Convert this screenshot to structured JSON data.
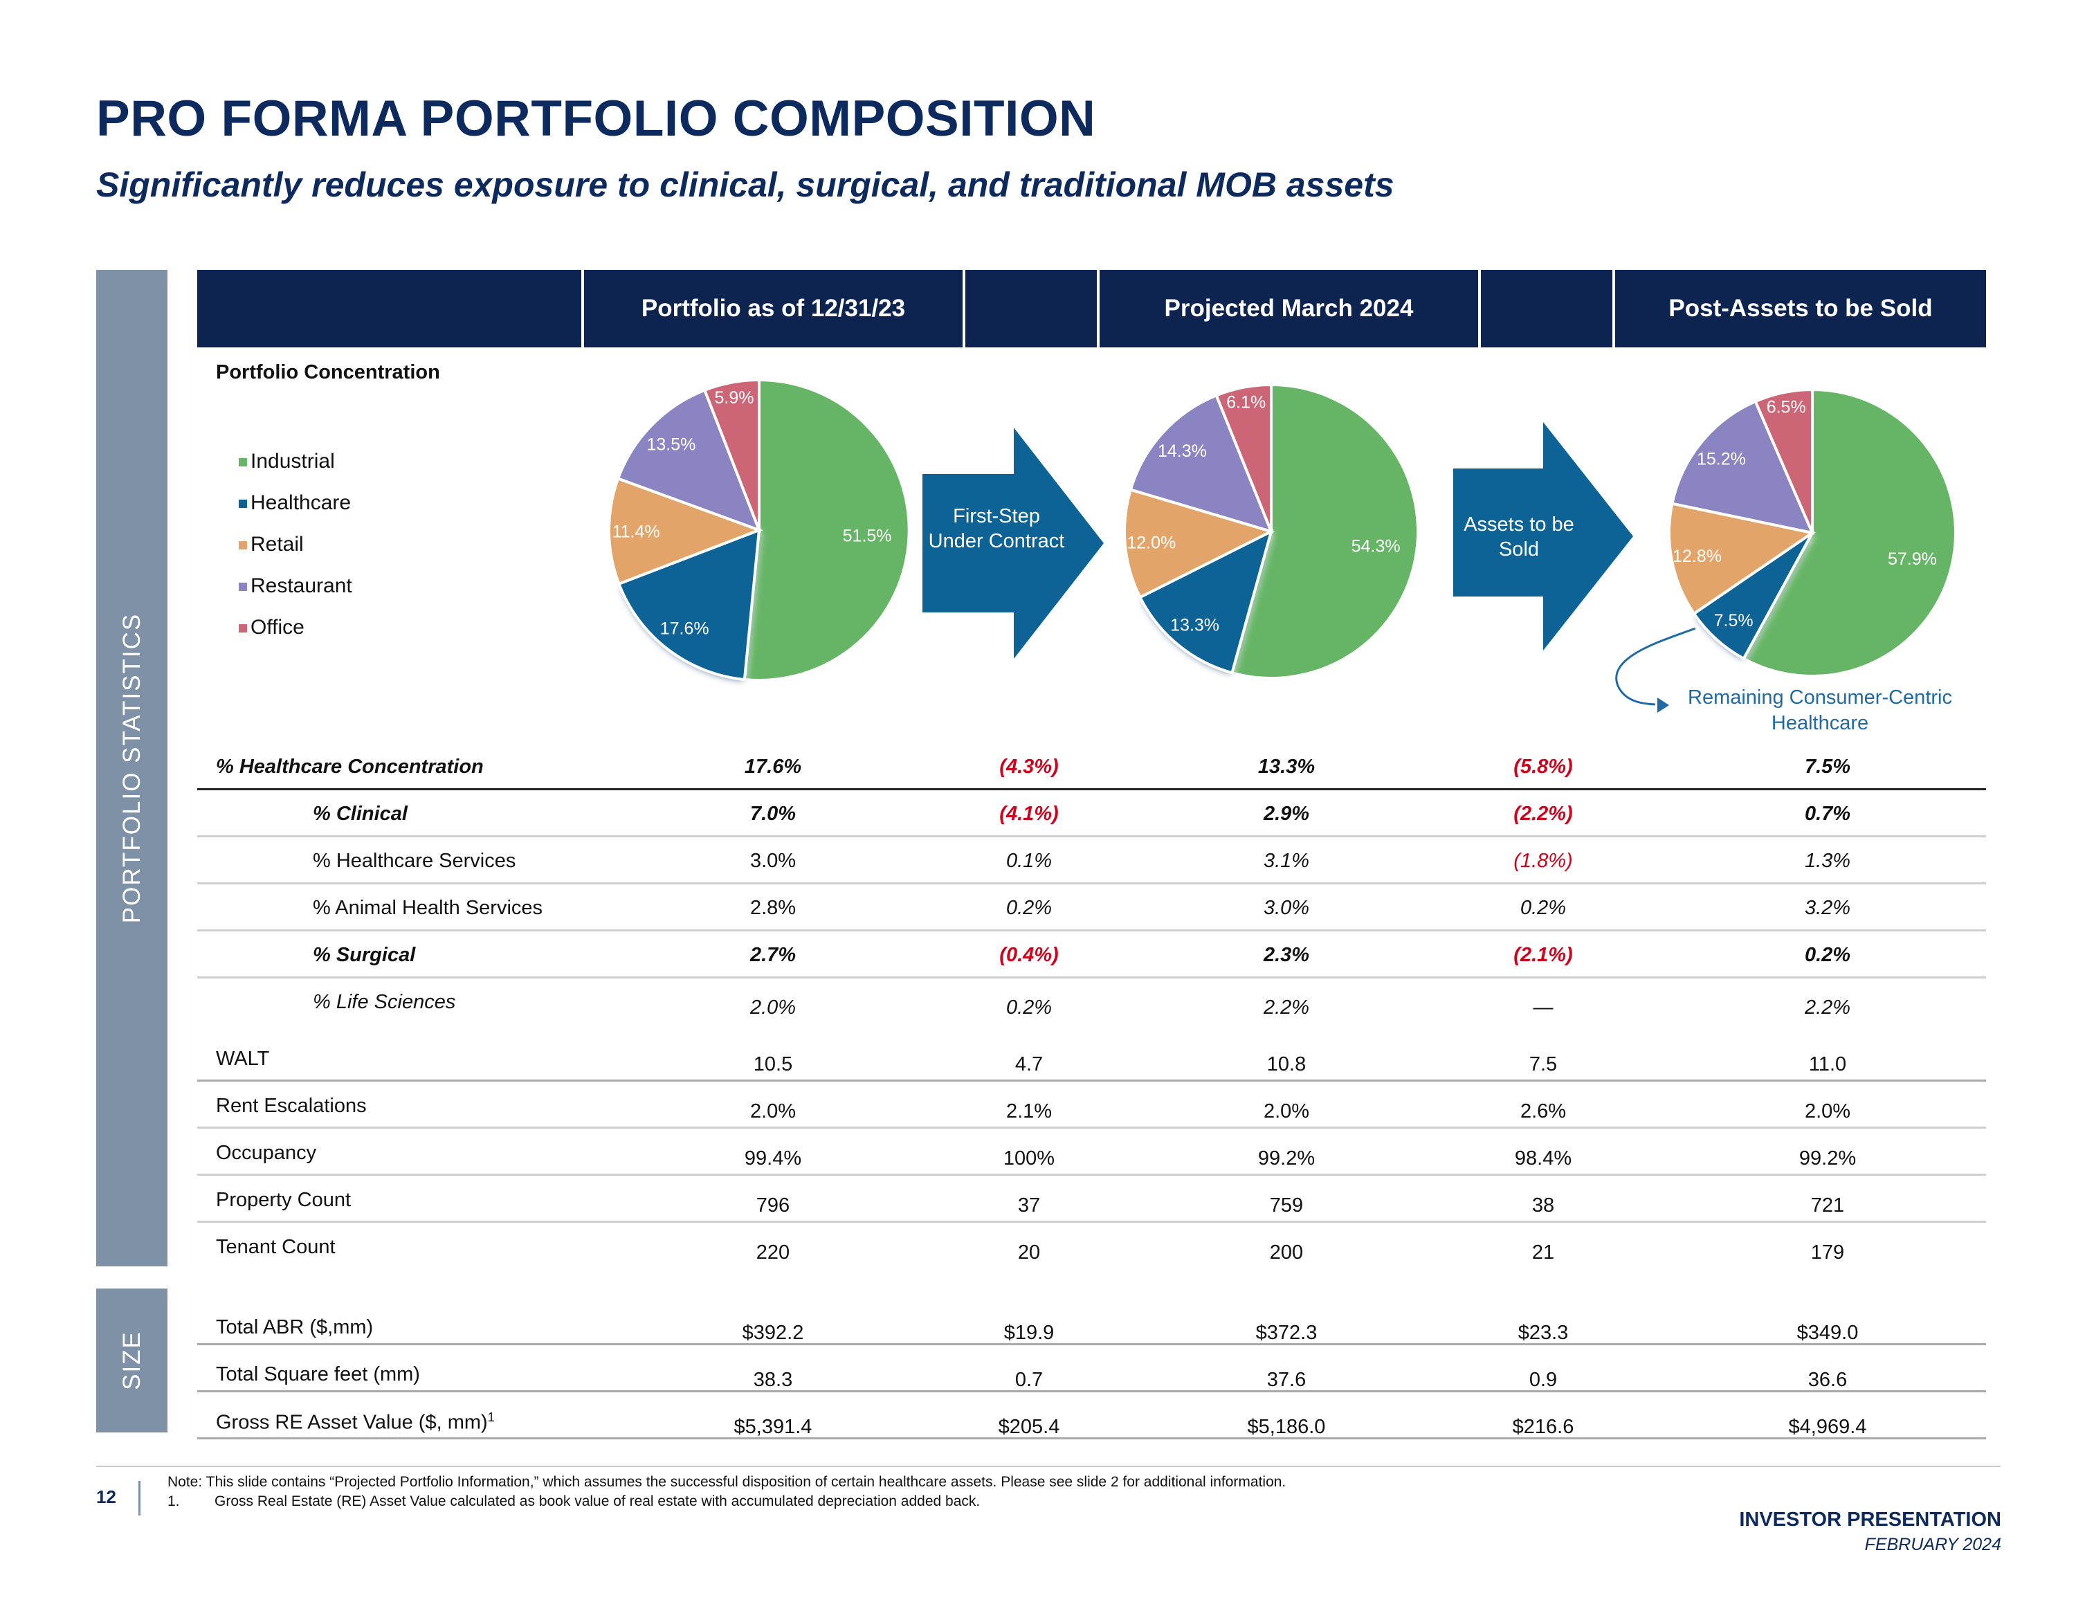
{
  "header": {
    "title": "PRO FORMA PORTFOLIO COMPOSITION",
    "subtitle": "Significantly reduces exposure to clinical, surgical, and traditional MOB assets"
  },
  "side_labels": {
    "portfolio_statistics": "PORTFOLIO STATISTICS",
    "size": "SIZE"
  },
  "columns": {
    "portfolio_current": "Portfolio as of 12/31/23",
    "projected": "Projected March 2024",
    "post_sale": "Post-Assets to be Sold"
  },
  "concentration_label": "Portfolio Concentration",
  "legend": [
    {
      "label": "Industrial",
      "color": "#66b566"
    },
    {
      "label": "Healthcare",
      "color": "#0d6396"
    },
    {
      "label": "Retail",
      "color": "#e2a468"
    },
    {
      "label": "Restaurant",
      "color": "#8a85c2"
    },
    {
      "label": "Office",
      "color": "#cc6677"
    }
  ],
  "arrows": {
    "first": "First-Step Under Contract",
    "second": "Assets to be Sold"
  },
  "annotation": "Remaining Consumer-Centric Healthcare",
  "chart_data": [
    {
      "type": "pie",
      "title": "Portfolio as of 12/31/23",
      "categories": [
        "Industrial",
        "Healthcare",
        "Retail",
        "Restaurant",
        "Office"
      ],
      "values": [
        51.5,
        17.6,
        11.4,
        13.5,
        5.9
      ],
      "labels": [
        "51.5%",
        "17.6%",
        "11.4%",
        "13.5%",
        "5.9%"
      ]
    },
    {
      "type": "pie",
      "title": "Projected March 2024",
      "categories": [
        "Industrial",
        "Healthcare",
        "Retail",
        "Restaurant",
        "Office"
      ],
      "values": [
        54.3,
        13.3,
        12.0,
        14.3,
        6.1
      ],
      "labels": [
        "54.3%",
        "13.3%",
        "12.0%",
        "14.3%",
        "6.1%"
      ]
    },
    {
      "type": "pie",
      "title": "Post-Assets to be Sold",
      "categories": [
        "Industrial",
        "Healthcare",
        "Retail",
        "Restaurant",
        "Office"
      ],
      "values": [
        57.9,
        7.5,
        12.8,
        15.2,
        6.5
      ],
      "labels": [
        "57.9%",
        "7.5%",
        "12.8%",
        "15.2%",
        "6.5%"
      ]
    }
  ],
  "rows": [
    {
      "label": "% Healthcare Concentration",
      "values": [
        "17.6%",
        "(4.3%)",
        "13.3%",
        "(5.8%)",
        "7.5%"
      ]
    },
    {
      "label": "% Clinical",
      "values": [
        "7.0%",
        "(4.1%)",
        "2.9%",
        "(2.2%)",
        "0.7%"
      ]
    },
    {
      "label": "% Healthcare Services",
      "values": [
        "3.0%",
        "0.1%",
        "3.1%",
        "(1.8%)",
        "1.3%"
      ]
    },
    {
      "label": "% Animal Health Services",
      "values": [
        "2.8%",
        "0.2%",
        "3.0%",
        "0.2%",
        "3.2%"
      ]
    },
    {
      "label": "% Surgical",
      "values": [
        "2.7%",
        "(0.4%)",
        "2.3%",
        "(2.1%)",
        "0.2%"
      ]
    },
    {
      "label": "% Life Sciences",
      "values": [
        "2.0%",
        "0.2%",
        "2.2%",
        "—",
        "2.2%"
      ]
    },
    {
      "label": "WALT",
      "values": [
        "10.5",
        "4.7",
        "10.8",
        "7.5",
        "11.0"
      ]
    },
    {
      "label": "Rent Escalations",
      "values": [
        "2.0%",
        "2.1%",
        "2.0%",
        "2.6%",
        "2.0%"
      ]
    },
    {
      "label": "Occupancy",
      "values": [
        "99.4%",
        "100%",
        "99.2%",
        "98.4%",
        "99.2%"
      ]
    },
    {
      "label": "Property Count",
      "values": [
        "796",
        "37",
        "759",
        "38",
        "721"
      ]
    },
    {
      "label": "Tenant Count",
      "values": [
        "220",
        "20",
        "200",
        "21",
        "179"
      ]
    }
  ],
  "size_rows": [
    {
      "label": "Total ABR ($,mm)",
      "values": [
        "$392.2",
        "$19.9",
        "$372.3",
        "$23.3",
        "$349.0"
      ]
    },
    {
      "label": "Total Square feet (mm)",
      "values": [
        "38.3",
        "0.7",
        "37.6",
        "0.9",
        "36.6"
      ]
    },
    {
      "label": "Gross RE Asset Value ($, mm)",
      "sup": "1",
      "values": [
        "$5,391.4",
        "$205.4",
        "$5,186.0",
        "$216.6",
        "$4,969.4"
      ]
    }
  ],
  "footer": {
    "page_number": "12",
    "note": "Note: This slide contains “Projected Portfolio Information,” which assumes the successful disposition of certain healthcare assets. Please see slide 2 for additional information.",
    "footnote_num": "1.",
    "footnote": "Gross Real Estate (RE) Asset Value calculated as book value of real estate with accumulated depreciation added back.",
    "presentation": "INVESTOR PRESENTATION",
    "date": "FEBRUARY 2024"
  }
}
